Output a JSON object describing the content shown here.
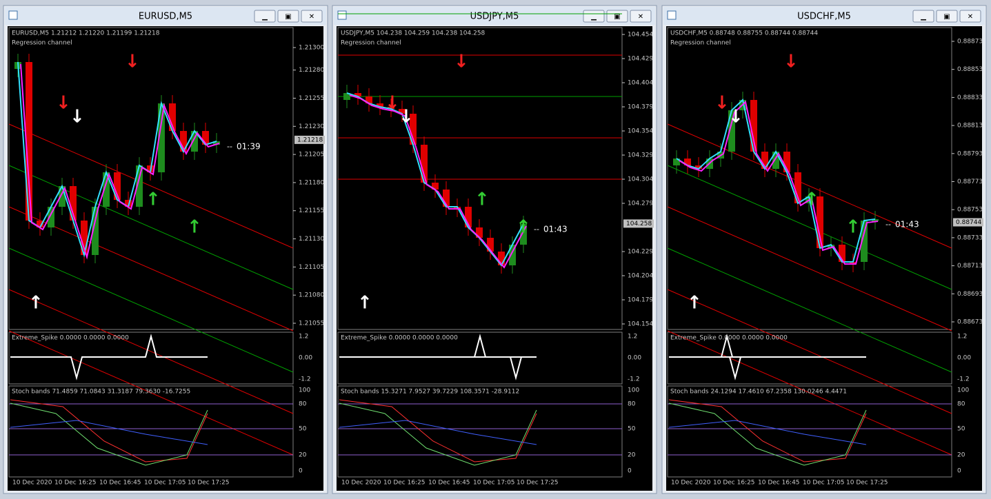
{
  "windows": [
    {
      "title": "EURUSD,M5",
      "info": "EURUSD,M5  1.21212 1.21220 1.21199 1.21218",
      "indicator": "Regression channel",
      "price_ticks": [
        "1.21300",
        "1.21280",
        "1.21255",
        "1.21230",
        "1.21205",
        "1.21180",
        "1.21155",
        "1.21130",
        "1.21105",
        "1.21080",
        "1.21055"
      ],
      "current_price": "1.21218",
      "timer": "01:39",
      "spike_label": "Extreme_Spike 0.0000 0.0000 0.0000",
      "spike_ticks": [
        "1.2",
        "0.00",
        "-1.2"
      ],
      "stoch_label": "Stoch bands 71.4859 71.0843 31.3187 79.3630 -16.7255",
      "stoch_ticks": [
        "100",
        "80",
        "50",
        "20",
        "0"
      ],
      "times": [
        "10 Dec 2020",
        "10 Dec 16:25",
        "10 Dec 16:45",
        "10 Dec 17:05",
        "10 Dec 17:25"
      ]
    },
    {
      "title": "USDJPY,M5",
      "info": "USDJPY,M5  104.238 104.259 104.238 104.258",
      "indicator": "Regression channel",
      "price_ticks": [
        "104.454",
        "104.429",
        "104.404",
        "104.379",
        "104.354",
        "104.329",
        "104.304",
        "104.279",
        "104.229",
        "104.204",
        "104.179",
        "104.154"
      ],
      "current_price": "104.258",
      "timer": "01:43",
      "spike_label": "Extreme_Spike 0.0000 0.0000 0.0000",
      "spike_ticks": [
        "1.2",
        "0.00",
        "-1.2"
      ],
      "stoch_label": "Stoch bands 15.3271 7.9527 39.7229 108.3571 -28.9112",
      "stoch_ticks": [
        "100",
        "80",
        "50",
        "20",
        "0"
      ],
      "times": [
        "10 Dec 2020",
        "10 Dec 16:25",
        "10 Dec 16:45",
        "10 Dec 17:05",
        "10 Dec 17:25"
      ]
    },
    {
      "title": "USDCHF,M5",
      "info": "USDCHF,M5  0.88748 0.88755 0.88744 0.88744",
      "indicator": "Regression channel",
      "price_ticks": [
        "0.88873",
        "0.88853",
        "0.88833",
        "0.88813",
        "0.88793",
        "0.88773",
        "0.88753",
        "0.88733",
        "0.88713",
        "0.88693",
        "0.88673"
      ],
      "current_price": "0.88744",
      "timer": "01:43",
      "spike_label": "Extreme_Spike 0.0000 0.0000 0.0000",
      "spike_ticks": [
        "1.2",
        "0.00",
        "-1.2"
      ],
      "stoch_label": "Stoch bands 24.1294 17.4610 67.2358 130.0246 4.4471",
      "stoch_ticks": [
        "100",
        "80",
        "50",
        "20",
        "0"
      ],
      "times": [
        "10 Dec 2020",
        "10 Dec 16:25",
        "10 Dec 16:45",
        "10 Dec 17:05",
        "10 Dec 17:25"
      ]
    }
  ]
}
